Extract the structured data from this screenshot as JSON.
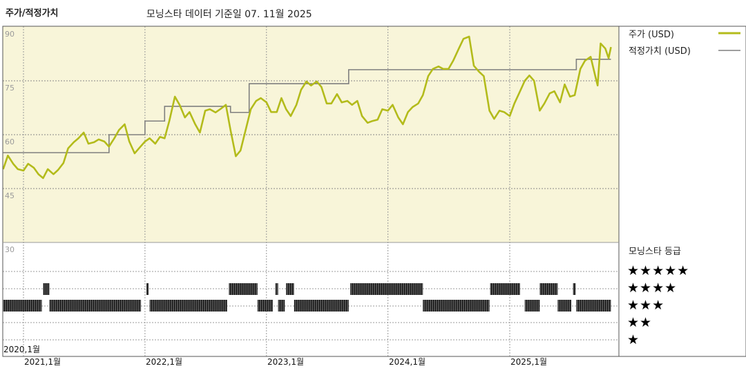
{
  "header": {
    "title": "주가/적정가치",
    "subtitle": "모닝스타 데이터 기준일 07. 11월 2025"
  },
  "legend": {
    "price_label": "주가 (USD)",
    "fair_value_label": "적정가치 (USD)",
    "rating_title": "모닝스타 등급",
    "rating_levels": [
      "★★★★★",
      "★★★★",
      "★★★",
      "★★",
      "★"
    ]
  },
  "colors": {
    "price": "#b3bb1b",
    "fair_value": "#7f7f7f",
    "plot_background": "#f8f5d9",
    "rating_bars": "#333333"
  },
  "chart_data": [
    {
      "type": "line",
      "title": "주가/적정가치",
      "ylim": [
        30,
        90
      ],
      "yticks": [
        "90",
        "75",
        "60",
        "45",
        "30"
      ],
      "xticks": [
        "2020,1월",
        "2021,1월",
        "2022,1월",
        "2023,1월",
        "2024,1월",
        "2025,1월"
      ],
      "grid": true,
      "legend": "right",
      "series": [
        {
          "name": "주가 (USD)",
          "points": [
            [
              "2020-11-01",
              50.4
            ],
            [
              "2020-11-15",
              54.2
            ],
            [
              "2020-12-01",
              51.9
            ],
            [
              "2020-12-15",
              50.4
            ],
            [
              "2021-01-01",
              50.0
            ],
            [
              "2021-01-15",
              51.9
            ],
            [
              "2021-02-01",
              50.8
            ],
            [
              "2021-02-15",
              49.0
            ],
            [
              "2021-03-01",
              47.9
            ],
            [
              "2021-03-15",
              50.4
            ],
            [
              "2021-04-01",
              49.0
            ],
            [
              "2021-04-15",
              50.2
            ],
            [
              "2021-05-01",
              52.1
            ],
            [
              "2021-05-15",
              56.2
            ],
            [
              "2021-06-01",
              57.9
            ],
            [
              "2021-06-15",
              59.0
            ],
            [
              "2021-07-01",
              60.6
            ],
            [
              "2021-07-15",
              57.5
            ],
            [
              "2021-08-01",
              57.9
            ],
            [
              "2021-08-15",
              58.7
            ],
            [
              "2021-09-01",
              58.1
            ],
            [
              "2021-09-15",
              56.7
            ],
            [
              "2021-10-01",
              59.0
            ],
            [
              "2021-10-15",
              61.3
            ],
            [
              "2021-11-01",
              62.9
            ],
            [
              "2021-11-15",
              58.1
            ],
            [
              "2021-12-01",
              54.8
            ],
            [
              "2021-12-15",
              56.3
            ],
            [
              "2022-01-01",
              58.1
            ],
            [
              "2022-01-15",
              59.0
            ],
            [
              "2022-02-01",
              57.5
            ],
            [
              "2022-02-15",
              59.4
            ],
            [
              "2022-03-01",
              59.0
            ],
            [
              "2022-03-15",
              63.8
            ],
            [
              "2022-04-01",
              70.6
            ],
            [
              "2022-04-15",
              68.3
            ],
            [
              "2022-05-01",
              64.8
            ],
            [
              "2022-05-15",
              66.3
            ],
            [
              "2022-06-01",
              62.9
            ],
            [
              "2022-06-15",
              60.6
            ],
            [
              "2022-07-01",
              66.7
            ],
            [
              "2022-07-15",
              67.1
            ],
            [
              "2022-08-01",
              66.2
            ],
            [
              "2022-08-15",
              67.1
            ],
            [
              "2022-09-01",
              68.3
            ],
            [
              "2022-09-15",
              61.3
            ],
            [
              "2022-10-01",
              54.0
            ],
            [
              "2022-10-15",
              55.6
            ],
            [
              "2022-11-01",
              61.9
            ],
            [
              "2022-11-15",
              67.1
            ],
            [
              "2022-12-01",
              69.4
            ],
            [
              "2022-12-15",
              70.2
            ],
            [
              "2023-01-01",
              69.0
            ],
            [
              "2023-01-15",
              66.3
            ],
            [
              "2023-02-01",
              66.3
            ],
            [
              "2023-02-15",
              70.2
            ],
            [
              "2023-03-01",
              67.1
            ],
            [
              "2023-03-15",
              65.2
            ],
            [
              "2023-04-01",
              68.3
            ],
            [
              "2023-04-15",
              72.5
            ],
            [
              "2023-05-01",
              74.8
            ],
            [
              "2023-05-15",
              73.7
            ],
            [
              "2023-06-01",
              74.8
            ],
            [
              "2023-06-15",
              73.3
            ],
            [
              "2023-07-01",
              68.7
            ],
            [
              "2023-07-15",
              68.7
            ],
            [
              "2023-08-01",
              71.3
            ],
            [
              "2023-08-15",
              69.0
            ],
            [
              "2023-09-01",
              69.4
            ],
            [
              "2023-09-15",
              68.3
            ],
            [
              "2023-10-01",
              69.4
            ],
            [
              "2023-10-15",
              65.2
            ],
            [
              "2023-11-01",
              63.3
            ],
            [
              "2023-11-15",
              63.8
            ],
            [
              "2023-12-01",
              64.2
            ],
            [
              "2023-12-15",
              67.1
            ],
            [
              "2024-01-01",
              66.7
            ],
            [
              "2024-01-15",
              68.3
            ],
            [
              "2024-02-01",
              64.8
            ],
            [
              "2024-02-15",
              62.9
            ],
            [
              "2024-03-01",
              66.3
            ],
            [
              "2024-03-15",
              67.7
            ],
            [
              "2024-04-01",
              68.7
            ],
            [
              "2024-04-15",
              71.0
            ],
            [
              "2024-05-01",
              76.3
            ],
            [
              "2024-05-15",
              78.3
            ],
            [
              "2024-06-01",
              79.0
            ],
            [
              "2024-06-15",
              78.3
            ],
            [
              "2024-07-01",
              78.3
            ],
            [
              "2024-07-15",
              80.6
            ],
            [
              "2024-08-01",
              84.0
            ],
            [
              "2024-08-15",
              86.7
            ],
            [
              "2024-09-01",
              87.3
            ],
            [
              "2024-09-15",
              79.2
            ],
            [
              "2024-10-01",
              77.5
            ],
            [
              "2024-10-15",
              76.3
            ],
            [
              "2024-11-01",
              66.7
            ],
            [
              "2024-11-15",
              64.4
            ],
            [
              "2024-12-01",
              66.7
            ],
            [
              "2024-12-15",
              66.3
            ],
            [
              "2025-01-01",
              65.2
            ],
            [
              "2025-01-15",
              68.7
            ],
            [
              "2025-02-01",
              72.1
            ],
            [
              "2025-02-15",
              75.0
            ],
            [
              "2025-03-01",
              76.5
            ],
            [
              "2025-03-15",
              75.0
            ],
            [
              "2025-04-01",
              66.7
            ],
            [
              "2025-04-15",
              68.7
            ],
            [
              "2025-05-01",
              71.5
            ],
            [
              "2025-05-15",
              72.1
            ],
            [
              "2025-06-01",
              69.0
            ],
            [
              "2025-06-15",
              74.0
            ],
            [
              "2025-07-01",
              70.6
            ],
            [
              "2025-07-15",
              71.0
            ],
            [
              "2025-08-01",
              78.3
            ],
            [
              "2025-08-15",
              80.6
            ],
            [
              "2025-09-01",
              81.7
            ],
            [
              "2025-09-15",
              76.3
            ],
            [
              "2025-09-22",
              73.7
            ],
            [
              "2025-10-01",
              85.4
            ],
            [
              "2025-10-15",
              84.0
            ],
            [
              "2025-10-25",
              81.3
            ],
            [
              "2025-11-01",
              84.4
            ]
          ]
        },
        {
          "name": "적정가치 (USD)",
          "step": true,
          "points": [
            [
              "2020-11-01",
              55.0
            ],
            [
              "2021-09-15",
              60.0
            ],
            [
              "2022-01-01",
              63.8
            ],
            [
              "2022-03-01",
              67.9
            ],
            [
              "2022-09-15",
              66.2
            ],
            [
              "2022-11-10",
              74.2
            ],
            [
              "2023-09-05",
              78.1
            ],
            [
              "2025-07-20",
              81.0
            ],
            [
              "2025-11-01",
              81.0
            ]
          ]
        }
      ]
    },
    {
      "type": "timeline",
      "title": "모닝스타 등급",
      "periods": [
        {
          "start": "2020-11-01",
          "end": "2021-02-25",
          "stars": 3
        },
        {
          "start": "2021-03-01",
          "end": "2021-03-20",
          "stars": 4
        },
        {
          "start": "2021-03-20",
          "end": "2021-12-20",
          "stars": 3
        },
        {
          "start": "2022-01-05",
          "end": "2022-01-12",
          "stars": 4
        },
        {
          "start": "2022-01-15",
          "end": "2022-09-05",
          "stars": 3
        },
        {
          "start": "2022-09-10",
          "end": "2022-12-05",
          "stars": 4
        },
        {
          "start": "2022-12-05",
          "end": "2023-01-20",
          "stars": 3
        },
        {
          "start": "2023-01-28",
          "end": "2023-02-05",
          "stars": 4
        },
        {
          "start": "2023-02-05",
          "end": "2023-02-25",
          "stars": 3
        },
        {
          "start": "2023-03-01",
          "end": "2023-03-25",
          "stars": 4
        },
        {
          "start": "2023-03-25",
          "end": "2023-09-05",
          "stars": 3
        },
        {
          "start": "2023-09-10",
          "end": "2024-04-15",
          "stars": 4
        },
        {
          "start": "2024-04-15",
          "end": "2024-11-01",
          "stars": 3
        },
        {
          "start": "2024-11-03",
          "end": "2025-02-01",
          "stars": 4
        },
        {
          "start": "2025-02-15",
          "end": "2025-04-01",
          "stars": 3
        },
        {
          "start": "2025-04-01",
          "end": "2025-05-25",
          "stars": 4
        },
        {
          "start": "2025-05-25",
          "end": "2025-07-05",
          "stars": 3
        },
        {
          "start": "2025-07-10",
          "end": "2025-07-18",
          "stars": 4
        },
        {
          "start": "2025-07-20",
          "end": "2025-11-01",
          "stars": 3
        }
      ]
    }
  ]
}
